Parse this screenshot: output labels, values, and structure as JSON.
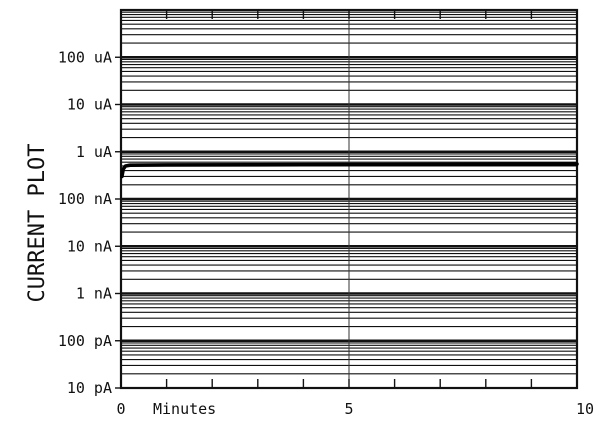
{
  "chart_data": {
    "type": "line",
    "ylabel": "CURRENT PLOT",
    "xlabel": "Minutes",
    "y_scale": "log",
    "ylim": [
      "10 pA",
      "1 mA"
    ],
    "y_tick_labels": [
      "10 pA",
      "100 pA",
      "1 nA",
      "10 nA",
      "100 nA",
      "1 uA",
      "10 uA",
      "100 uA"
    ],
    "x_tick_labels": [
      "0",
      "5",
      "10"
    ],
    "xlim": [
      0,
      10
    ],
    "grid": true,
    "series": [
      {
        "color": "#000000",
        "points_minutes_amps": [
          [
            0.02,
            3e-07
          ],
          [
            0.05,
            4.3e-07
          ],
          [
            0.1,
            5e-07
          ],
          [
            0.2,
            5.2e-07
          ],
          [
            1.0,
            5.25e-07
          ],
          [
            3.0,
            5.3e-07
          ],
          [
            5.0,
            5.35e-07
          ],
          [
            7.0,
            5.4e-07
          ],
          [
            9.0,
            5.45e-07
          ],
          [
            10.0,
            5.5e-07
          ]
        ]
      }
    ]
  }
}
